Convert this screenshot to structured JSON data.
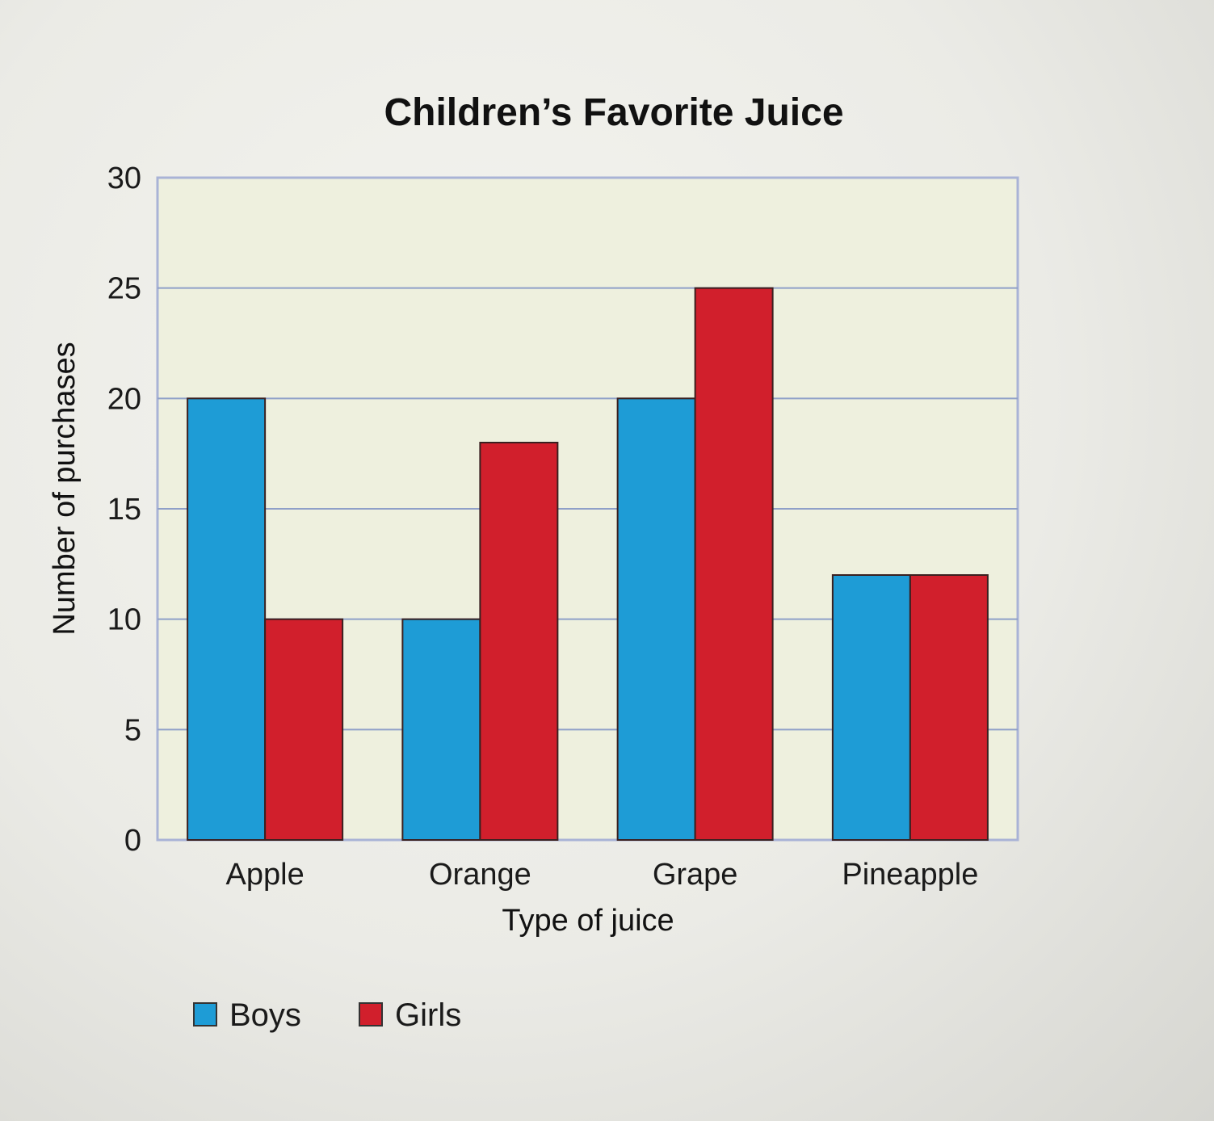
{
  "chart_data": {
    "type": "bar",
    "title": "Children’s Favorite Juice",
    "xlabel": "Type of juice",
    "ylabel": "Number of purchases",
    "categories": [
      "Apple",
      "Orange",
      "Grape",
      "Pineapple"
    ],
    "series": [
      {
        "name": "Boys",
        "values": [
          20,
          10,
          20,
          12
        ],
        "color": "#1e9cd6"
      },
      {
        "name": "Girls",
        "values": [
          10,
          18,
          25,
          12
        ],
        "color": "#d11f2c"
      }
    ],
    "ylim": [
      0,
      30
    ],
    "yticks": [
      "0",
      "5",
      "10",
      "15",
      "20",
      "25",
      "30"
    ],
    "grid": true,
    "legend_position": "bottom-left"
  }
}
